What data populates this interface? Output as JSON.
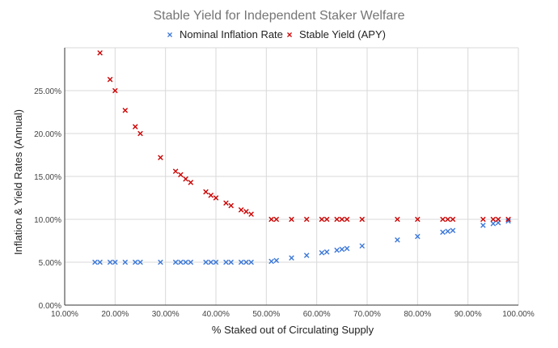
{
  "chart_data": {
    "type": "scatter",
    "title": "Stable Yield for Independent Staker Welfare",
    "xlabel": "% Staked out of Circulating Supply",
    "ylabel": "Inflation & Yield Rates (Annual)",
    "xlim": [
      10,
      100
    ],
    "ylim": [
      0,
      30
    ],
    "x_ticks": [
      10,
      20,
      30,
      40,
      50,
      60,
      70,
      80,
      90,
      100
    ],
    "x_tick_labels": [
      "10.00%",
      "20.00%",
      "30.00%",
      "40.00%",
      "50.00%",
      "60.00%",
      "70.00%",
      "80.00%",
      "90.00%",
      "100.00%"
    ],
    "y_ticks": [
      0,
      5,
      10,
      15,
      20,
      25
    ],
    "y_tick_labels": [
      "0.00%",
      "5.00%",
      "10.00%",
      "15.00%",
      "20.00%",
      "25.00%"
    ],
    "grid": true,
    "legend_position": "top-center",
    "marker": "x",
    "series": [
      {
        "name": "Nominal Inflation Rate",
        "color": "#3c78d8",
        "points": [
          [
            16,
            5
          ],
          [
            17,
            5
          ],
          [
            19,
            5
          ],
          [
            20,
            5
          ],
          [
            22,
            5
          ],
          [
            24,
            5
          ],
          [
            25,
            5
          ],
          [
            29,
            5
          ],
          [
            32,
            5
          ],
          [
            33,
            5
          ],
          [
            34,
            5
          ],
          [
            35,
            5
          ],
          [
            38,
            5
          ],
          [
            39,
            5
          ],
          [
            40,
            5
          ],
          [
            42,
            5
          ],
          [
            43,
            5
          ],
          [
            45,
            5
          ],
          [
            46,
            5
          ],
          [
            47,
            5
          ],
          [
            51,
            5.1
          ],
          [
            52,
            5.2
          ],
          [
            55,
            5.5
          ],
          [
            58,
            5.8
          ],
          [
            61,
            6.1
          ],
          [
            62,
            6.2
          ],
          [
            64,
            6.4
          ],
          [
            65,
            6.5
          ],
          [
            66,
            6.6
          ],
          [
            69,
            6.9
          ],
          [
            76,
            7.6
          ],
          [
            80,
            8.0
          ],
          [
            85,
            8.5
          ],
          [
            86,
            8.6
          ],
          [
            87,
            8.7
          ],
          [
            93,
            9.3
          ],
          [
            95,
            9.5
          ],
          [
            96,
            9.6
          ],
          [
            98,
            9.8
          ]
        ]
      },
      {
        "name": "Stable Yield (APY)",
        "color": "#cc0000",
        "points": [
          [
            17,
            29.4
          ],
          [
            19,
            26.3
          ],
          [
            20,
            25.0
          ],
          [
            22,
            22.7
          ],
          [
            24,
            20.8
          ],
          [
            25,
            20.0
          ],
          [
            29,
            17.2
          ],
          [
            32,
            15.6
          ],
          [
            33,
            15.2
          ],
          [
            34,
            14.7
          ],
          [
            35,
            14.3
          ],
          [
            38,
            13.2
          ],
          [
            39,
            12.8
          ],
          [
            40,
            12.5
          ],
          [
            42,
            11.9
          ],
          [
            43,
            11.6
          ],
          [
            45,
            11.1
          ],
          [
            46,
            10.9
          ],
          [
            47,
            10.6
          ],
          [
            51,
            10
          ],
          [
            52,
            10
          ],
          [
            55,
            10
          ],
          [
            58,
            10
          ],
          [
            61,
            10
          ],
          [
            62,
            10
          ],
          [
            64,
            10
          ],
          [
            65,
            10
          ],
          [
            66,
            10
          ],
          [
            69,
            10
          ],
          [
            76,
            10
          ],
          [
            80,
            10
          ],
          [
            85,
            10
          ],
          [
            86,
            10
          ],
          [
            87,
            10
          ],
          [
            93,
            10
          ],
          [
            95,
            10
          ],
          [
            96,
            10
          ],
          [
            98,
            10
          ]
        ]
      }
    ]
  }
}
